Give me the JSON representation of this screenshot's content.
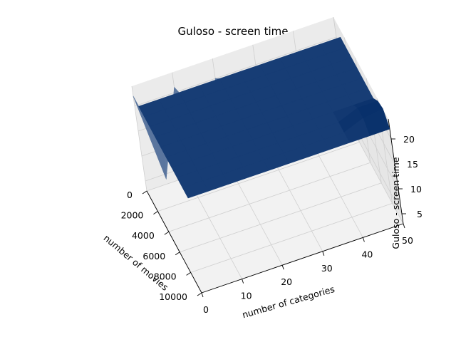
{
  "chart_data": {
    "type": "surface-3d",
    "title": "Guloso - screen time",
    "xlabel": "number of movies",
    "ylabel": "number of categories",
    "zlabel": "Guloso - screen time",
    "x_ticks": [
      "0",
      "2000",
      "4000",
      "6000",
      "8000",
      "10000"
    ],
    "y_ticks": [
      "0",
      "10",
      "20",
      "30",
      "40",
      "50"
    ],
    "z_ticks": [
      "5",
      "10",
      "15",
      "20"
    ],
    "xlim": [
      0,
      10000
    ],
    "ylim": [
      0,
      50
    ],
    "zlim": [
      3,
      24
    ],
    "grid": true,
    "colormap": "Blues",
    "colors": {
      "high": "#08306b",
      "low": "#f7fbff",
      "pane": "#f2f2f2",
      "grid": "#cfcfcf"
    },
    "surface": {
      "description": "Screen time reaches about 22-24 across nearly all categories; the first category column (near 0 categories) drops to low values across movie counts.",
      "x": [
        0,
        1000,
        2000,
        3000,
        4000,
        5000,
        6000,
        7000,
        8000,
        9000,
        10000
      ],
      "y": [
        0,
        5,
        10,
        15,
        20,
        25,
        30,
        35,
        40,
        45,
        50
      ],
      "z": [
        [
          22.0,
          22.0,
          22.0,
          22.0,
          22.0,
          22.0,
          22.0,
          22.0,
          22.0,
          22.0,
          22.0
        ],
        [
          4.0,
          22.0,
          22.0,
          22.0,
          22.0,
          22.0,
          22.0,
          22.0,
          22.0,
          22.0,
          22.0
        ],
        [
          21.0,
          22.0,
          22.0,
          22.0,
          22.0,
          22.0,
          22.0,
          22.0,
          22.0,
          22.0,
          22.0
        ],
        [
          4.0,
          22.0,
          22.0,
          22.0,
          22.0,
          22.0,
          22.0,
          22.0,
          22.0,
          22.0,
          22.0
        ],
        [
          20.0,
          22.0,
          22.0,
          22.0,
          22.0,
          22.0,
          22.0,
          22.0,
          22.0,
          22.0,
          22.0
        ],
        [
          3.0,
          22.0,
          22.0,
          22.0,
          22.0,
          22.0,
          22.0,
          22.0,
          22.0,
          22.0,
          22.0
        ],
        [
          4.0,
          22.0,
          22.0,
          22.0,
          22.0,
          22.0,
          22.0,
          22.0,
          22.0,
          22.0,
          22.0
        ],
        [
          3.0,
          22.0,
          22.0,
          22.0,
          22.0,
          22.0,
          22.0,
          22.0,
          22.0,
          22.0,
          22.0
        ],
        [
          3.0,
          22.0,
          22.0,
          22.0,
          22.0,
          22.0,
          22.0,
          22.0,
          22.0,
          22.0,
          22.0
        ],
        [
          3.0,
          22.0,
          22.0,
          22.0,
          22.0,
          22.0,
          22.0,
          22.0,
          23.5,
          23.5,
          22.0
        ],
        [
          3.0,
          22.0,
          22.0,
          22.0,
          22.0,
          22.0,
          22.0,
          22.0,
          23.5,
          24.0,
          22.0
        ]
      ]
    }
  }
}
